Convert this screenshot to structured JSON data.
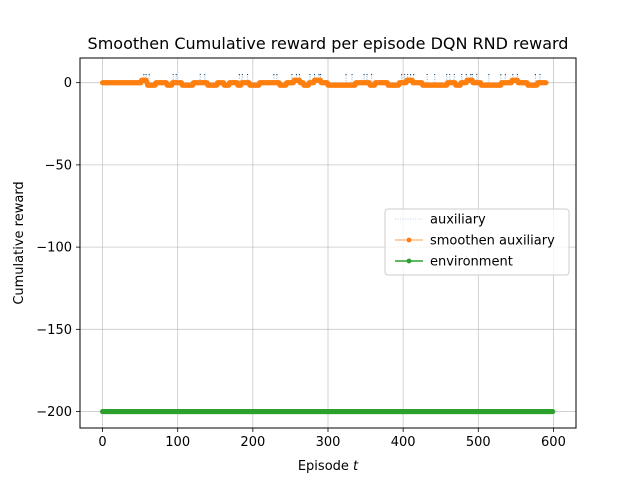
{
  "chart_data": {
    "type": "line",
    "title": "Smoothen Cumulative reward per episode DQN RND reward",
    "xlabel_prefix": "Episode ",
    "xlabel_var": "t",
    "ylabel": "Cumulative reward",
    "xlim": [
      -30,
      630
    ],
    "ylim": [
      -210,
      15
    ],
    "xticks": [
      0,
      100,
      200,
      300,
      400,
      500,
      600
    ],
    "yticks": [
      0,
      -50,
      -100,
      -150,
      -200
    ],
    "grid": true,
    "legend_position": "center-right",
    "series": [
      {
        "name": "auxiliary",
        "color": "#1f77b4",
        "style": "dotted",
        "x_range": [
          0,
          590
        ],
        "baseline": 0,
        "spike_episodes": [
          55,
          58,
          62,
          94,
          98,
          130,
          136,
          182,
          186,
          193,
          228,
          232,
          252,
          258,
          262,
          276,
          282,
          288,
          290,
          324,
          332,
          348,
          352,
          358,
          398,
          402,
          406,
          410,
          414,
          432,
          442,
          458,
          462,
          468,
          478,
          484,
          490,
          492,
          498,
          514,
          530,
          536,
          546,
          552,
          576,
          582
        ],
        "spike_height": 5
      },
      {
        "name": "smoothen auxiliary",
        "color": "#ff7f0e",
        "style": "line-markers",
        "x_range": [
          0,
          590
        ],
        "baseline": 0,
        "dip_ranges": [
          [
            60,
            70
          ],
          [
            86,
            92
          ],
          [
            106,
            120
          ],
          [
            140,
            152
          ],
          [
            162,
            168
          ],
          [
            180,
            184
          ],
          [
            196,
            208
          ],
          [
            236,
            244
          ],
          [
            268,
            274
          ],
          [
            300,
            336
          ],
          [
            356,
            362
          ],
          [
            380,
            394
          ],
          [
            426,
            458
          ],
          [
            470,
            476
          ],
          [
            504,
            530
          ],
          [
            566,
            578
          ]
        ],
        "dip_value": -1.5,
        "bump_ranges": [
          [
            52,
            58
          ],
          [
            255,
            262
          ],
          [
            282,
            290
          ],
          [
            405,
            412
          ],
          [
            485,
            492
          ],
          [
            545,
            552
          ]
        ],
        "bump_value": 1.5
      },
      {
        "name": "environment",
        "color": "#2ca02c",
        "style": "line-markers",
        "x_range": [
          0,
          599
        ],
        "constant": -200
      }
    ]
  }
}
